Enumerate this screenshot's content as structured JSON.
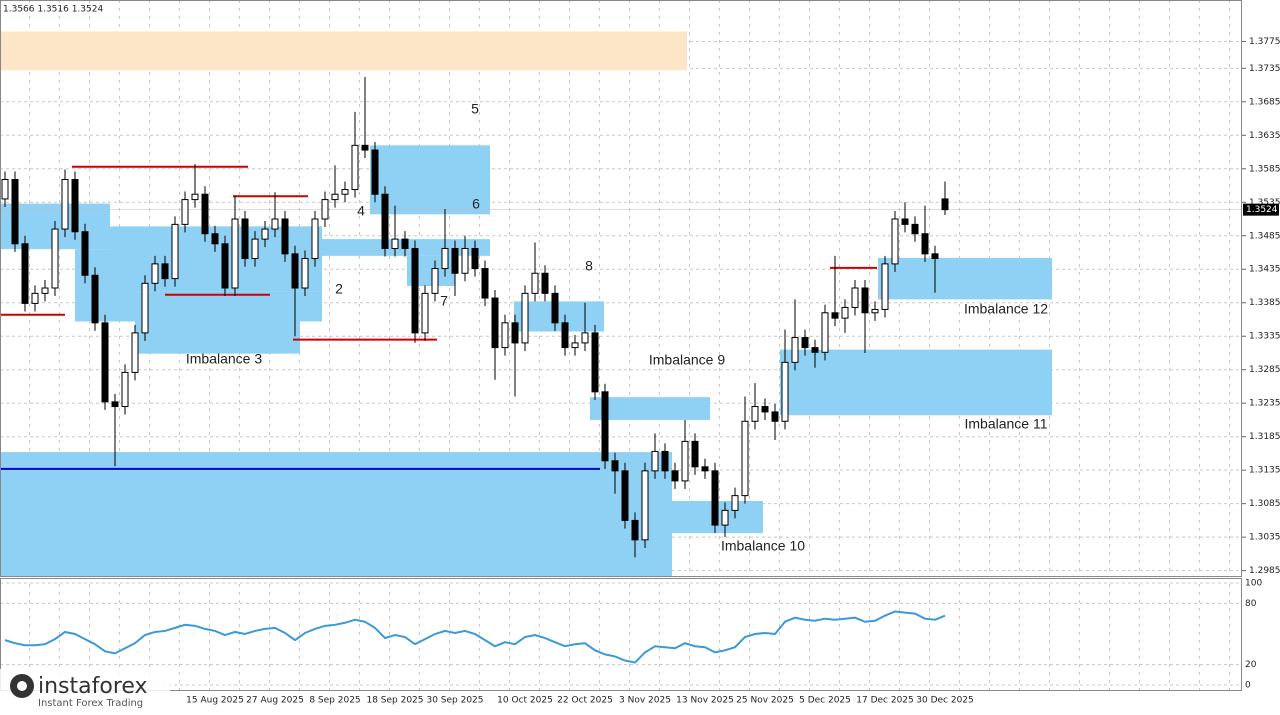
{
  "chart_data": {
    "type": "candlestick",
    "header": "1.3566 1.3516 1.3524",
    "categories": [
      null,
      null,
      null,
      null,
      null,
      null,
      null,
      null,
      null,
      null,
      null,
      null,
      null,
      null,
      null,
      null,
      null,
      null,
      null,
      null,
      null,
      "15 Aug 2025",
      null,
      null,
      null,
      null,
      null,
      "27 Aug 2025",
      null,
      null,
      null,
      null,
      null,
      "8 Sep 2025",
      null,
      null,
      null,
      null,
      null,
      "18 Sep 2025",
      null,
      null,
      null,
      null,
      null,
      "30 Sep 2025",
      null,
      null,
      null,
      null,
      null,
      null,
      "10 Oct 2025",
      null,
      null,
      null,
      null,
      null,
      "22 Oct 2025",
      null,
      null,
      null,
      null,
      null,
      "3 Nov 2025",
      null,
      null,
      null,
      null,
      null,
      "13 Nov 2025",
      null,
      null,
      null,
      null,
      null,
      "25 Nov 2025",
      null,
      null,
      null,
      null,
      null,
      "5 Dec 2025",
      null,
      null,
      null,
      null,
      null,
      "17 Dec 2025",
      null,
      null,
      null,
      null,
      null,
      "30 Dec 2025"
    ],
    "open": [
      1.354,
      1.3569,
      1.3473,
      1.3384,
      1.3399,
      1.3407,
      1.3495,
      1.3569,
      1.3491,
      1.3426,
      1.3355,
      1.3237,
      1.323,
      1.3281,
      1.334,
      1.3414,
      1.3443,
      1.3421,
      1.3502,
      1.3539,
      1.3547,
      1.3488,
      1.3473,
      1.3407,
      1.351,
      1.3451,
      1.348,
      1.3495,
      1.351,
      1.3458,
      1.3407,
      1.3451,
      1.351,
      1.3539,
      1.3547,
      1.3554,
      1.362,
      1.3613,
      1.3547,
      1.3466,
      1.348,
      1.3466,
      1.334,
      1.3399,
      1.3436,
      1.3466,
      1.3429,
      1.3466,
      1.3436,
      1.3392,
      1.3318,
      1.3355,
      1.3325,
      1.3399,
      1.3429,
      1.3399,
      1.3355,
      1.3318,
      1.3325,
      1.334,
      1.3252,
      1.3149,
      1.3134,
      1.306,
      1.3031,
      1.3134,
      1.3163,
      1.3134,
      1.3119,
      1.3178,
      1.314,
      1.3134,
      1.3053,
      1.3075,
      1.3097,
      1.3208,
      1.323,
      1.3222,
      1.3208,
      1.3296,
      1.3333,
      1.3318,
      1.3311,
      1.337,
      1.3362,
      1.3378,
      1.3407,
      1.337,
      1.3375,
      1.3443,
      1.351,
      1.3502,
      1.3488,
      1.3458,
      1.354
    ],
    "high": [
      1.3581,
      1.3581,
      1.3485,
      1.3411,
      1.3419,
      1.3507,
      1.3584,
      1.3581,
      1.3503,
      1.3438,
      1.3367,
      1.3249,
      1.3293,
      1.3352,
      1.3426,
      1.3455,
      1.3455,
      1.3514,
      1.3551,
      1.3592,
      1.3559,
      1.35,
      1.3485,
      1.3545,
      1.3522,
      1.3492,
      1.3507,
      1.355,
      1.3522,
      1.347,
      1.3463,
      1.3522,
      1.3551,
      1.359,
      1.3566,
      1.367,
      1.3722,
      1.3625,
      1.3559,
      1.353,
      1.3492,
      1.3478,
      1.3411,
      1.3448,
      1.3525,
      1.3478,
      1.3485,
      1.3478,
      1.3448,
      1.3404,
      1.3367,
      1.3367,
      1.3411,
      1.3475,
      1.3441,
      1.3411,
      1.3367,
      1.3337,
      1.3385,
      1.3352,
      1.3264,
      1.3161,
      1.3146,
      1.3072,
      1.3146,
      1.319,
      1.3175,
      1.3146,
      1.321,
      1.319,
      1.3152,
      1.3146,
      1.3087,
      1.3109,
      1.3245,
      1.3265,
      1.3242,
      1.3234,
      1.3345,
      1.339,
      1.3345,
      1.333,
      1.3382,
      1.3455,
      1.339,
      1.3419,
      1.3419,
      1.3387,
      1.3455,
      1.3522,
      1.3535,
      1.3514,
      1.353,
      1.347,
      1.3566
    ],
    "low": [
      1.3528,
      1.3461,
      1.3372,
      1.3372,
      1.3387,
      1.3395,
      1.3483,
      1.3479,
      1.3414,
      1.3343,
      1.3225,
      1.3141,
      1.3218,
      1.3269,
      1.3328,
      1.3402,
      1.3409,
      1.3409,
      1.349,
      1.3527,
      1.3476,
      1.3461,
      1.3395,
      1.3395,
      1.3439,
      1.3439,
      1.3468,
      1.3483,
      1.3446,
      1.3335,
      1.3395,
      1.3439,
      1.3498,
      1.3527,
      1.3535,
      1.3542,
      1.3601,
      1.3535,
      1.3454,
      1.3454,
      1.3454,
      1.3325,
      1.3328,
      1.3387,
      1.3424,
      1.3395,
      1.3417,
      1.3424,
      1.338,
      1.327,
      1.3306,
      1.3245,
      1.3313,
      1.3387,
      1.3387,
      1.3343,
      1.3306,
      1.3306,
      1.3313,
      1.324,
      1.3137,
      1.31,
      1.3048,
      1.3005,
      1.3019,
      1.3122,
      1.3122,
      1.3107,
      1.3107,
      1.3128,
      1.3122,
      1.3041,
      1.3035,
      1.3063,
      1.3085,
      1.3196,
      1.321,
      1.318,
      1.3196,
      1.3284,
      1.3306,
      1.3288,
      1.3299,
      1.335,
      1.334,
      1.3366,
      1.331,
      1.3358,
      1.3363,
      1.3431,
      1.349,
      1.3476,
      1.3446,
      1.34,
      1.3516
    ],
    "close": [
      1.3569,
      1.3473,
      1.3384,
      1.3399,
      1.3407,
      1.3495,
      1.3569,
      1.3491,
      1.3426,
      1.3355,
      1.3237,
      1.323,
      1.3281,
      1.334,
      1.3414,
      1.3443,
      1.3421,
      1.3502,
      1.3539,
      1.3547,
      1.3488,
      1.3473,
      1.3407,
      1.351,
      1.3451,
      1.348,
      1.3495,
      1.351,
      1.3458,
      1.3407,
      1.3451,
      1.351,
      1.3539,
      1.3547,
      1.3554,
      1.362,
      1.3613,
      1.3547,
      1.3466,
      1.348,
      1.3466,
      1.334,
      1.3399,
      1.3436,
      1.3466,
      1.3429,
      1.3466,
      1.3436,
      1.3392,
      1.3318,
      1.3355,
      1.3325,
      1.3399,
      1.3429,
      1.3399,
      1.3355,
      1.3318,
      1.3325,
      1.334,
      1.3252,
      1.3149,
      1.3134,
      1.306,
      1.3031,
      1.3134,
      1.3163,
      1.3134,
      1.3119,
      1.3178,
      1.314,
      1.3134,
      1.3053,
      1.3075,
      1.3097,
      1.3208,
      1.323,
      1.3222,
      1.3208,
      1.3296,
      1.3333,
      1.3318,
      1.3311,
      1.337,
      1.3362,
      1.3378,
      1.3407,
      1.337,
      1.3375,
      1.3443,
      1.351,
      1.3502,
      1.3488,
      1.3458,
      1.3451,
      1.3524
    ],
    "ylim": [
      1.2977,
      1.3837
    ],
    "yticks": [
      1.2985,
      1.3035,
      1.3085,
      1.3135,
      1.3185,
      1.3235,
      1.3285,
      1.3335,
      1.3385,
      1.3435,
      1.3485,
      1.3535,
      1.3585,
      1.3635,
      1.3685,
      1.3735,
      1.3775
    ],
    "zones": [
      {
        "x": [
          -0.5,
          68.2
        ],
        "y": [
          1.3732,
          1.379
        ],
        "color": "#fde5c8"
      },
      {
        "x": [
          -0.5,
          10.5
        ],
        "y": [
          1.3465,
          1.3533
        ],
        "color": "#8fd0f5"
      },
      {
        "x": [
          7,
          13
        ],
        "y": [
          1.3357,
          1.3465
        ],
        "color": "#8fd0f5"
      },
      {
        "x": [
          10.5,
          31.7
        ],
        "y": [
          1.3402,
          1.3499
        ],
        "color": "#8fd0f5"
      },
      {
        "x": [
          13,
          29.5
        ],
        "y": [
          1.3309,
          1.3402
        ],
        "color": "#8fd0f5"
      },
      {
        "x": [
          29.5,
          31.7
        ],
        "y": [
          1.3357,
          1.3402
        ],
        "color": "#8fd0f5"
      },
      {
        "x": [
          31.7,
          48.5
        ],
        "y": [
          1.3455,
          1.348
        ],
        "color": "#8fd0f5"
      },
      {
        "x": [
          36.5,
          48.5
        ],
        "y": [
          1.3517,
          1.362
        ],
        "color": "#8fd0f5"
      },
      {
        "x": [
          40.2,
          45
        ],
        "y": [
          1.341,
          1.3455
        ],
        "color": "#8fd0f5"
      },
      {
        "x": [
          50.9,
          59.9
        ],
        "y": [
          1.3342,
          1.3387
        ],
        "color": "#8fd0f5"
      },
      {
        "x": [
          58.5,
          70.5
        ],
        "y": [
          1.321,
          1.3244
        ],
        "color": "#8fd0f5"
      },
      {
        "x": [
          -0.5,
          66.7
        ],
        "y": [
          1.2977,
          1.3162
        ],
        "color": "#8fd0f5"
      },
      {
        "x": [
          66.7,
          75.8
        ],
        "y": [
          1.3041,
          1.3089
        ],
        "color": "#8fd0f5"
      },
      {
        "x": [
          77.5,
          104.7
        ],
        "y": [
          1.3217,
          1.3315
        ],
        "color": "#8fd0f5"
      },
      {
        "x": [
          87.3,
          104.7
        ],
        "y": [
          1.339,
          1.3452
        ],
        "color": "#8fd0f5"
      }
    ],
    "levels": [
      {
        "x": [
          6.7,
          24.3
        ],
        "value": 1.3588,
        "color": "#cc0000"
      },
      {
        "x": [
          16,
          26.5
        ],
        "value": 1.3397,
        "color": "#cc0000"
      },
      {
        "x": [
          22.8,
          30.3
        ],
        "value": 1.3544,
        "color": "#cc0000"
      },
      {
        "x": [
          28.8,
          43.2
        ],
        "value": 1.333,
        "color": "#cc0000"
      },
      {
        "x": [
          -0.5,
          6
        ],
        "value": 1.3367,
        "color": "#cc0000"
      },
      {
        "x": [
          82.5,
          87.2
        ],
        "value": 1.3437,
        "color": "#cc0000"
      },
      {
        "x": [
          -0.5,
          59.5
        ],
        "value": 1.3137,
        "color": "#0000cc"
      }
    ],
    "annotations": [
      "5",
      "6",
      "4",
      "2",
      "7",
      "8",
      "Imbalance 3",
      "Imbalance 9",
      "Imbalance 10",
      "Imbalance 11",
      "Imbalance 12"
    ],
    "oscillator": {
      "color": "#3a9ad9",
      "values": [
        44,
        41,
        39,
        39,
        40,
        45,
        52,
        50,
        45,
        40,
        33,
        31,
        36,
        41,
        49,
        52,
        53,
        56,
        59,
        58,
        55,
        53,
        49,
        52,
        50,
        53,
        55,
        56,
        51,
        44,
        51,
        55,
        58,
        59,
        61,
        64,
        62,
        56,
        46,
        49,
        47,
        40,
        45,
        50,
        53,
        51,
        53,
        50,
        44,
        38,
        42,
        40,
        47,
        49,
        46,
        42,
        38,
        40,
        41,
        34,
        30,
        28,
        24,
        22,
        32,
        38,
        37,
        36,
        41,
        38,
        37,
        32,
        34,
        37,
        47,
        50,
        51,
        50,
        62,
        66,
        64,
        63,
        65,
        64,
        65,
        66,
        62,
        63,
        68,
        72,
        71,
        70,
        65,
        64,
        68
      ],
      "ylim": [
        -4.9,
        104.9
      ],
      "yticks": [
        0,
        20,
        80,
        100
      ]
    },
    "brand": "instaforex",
    "tagline": "Instant Forex Trading"
  }
}
